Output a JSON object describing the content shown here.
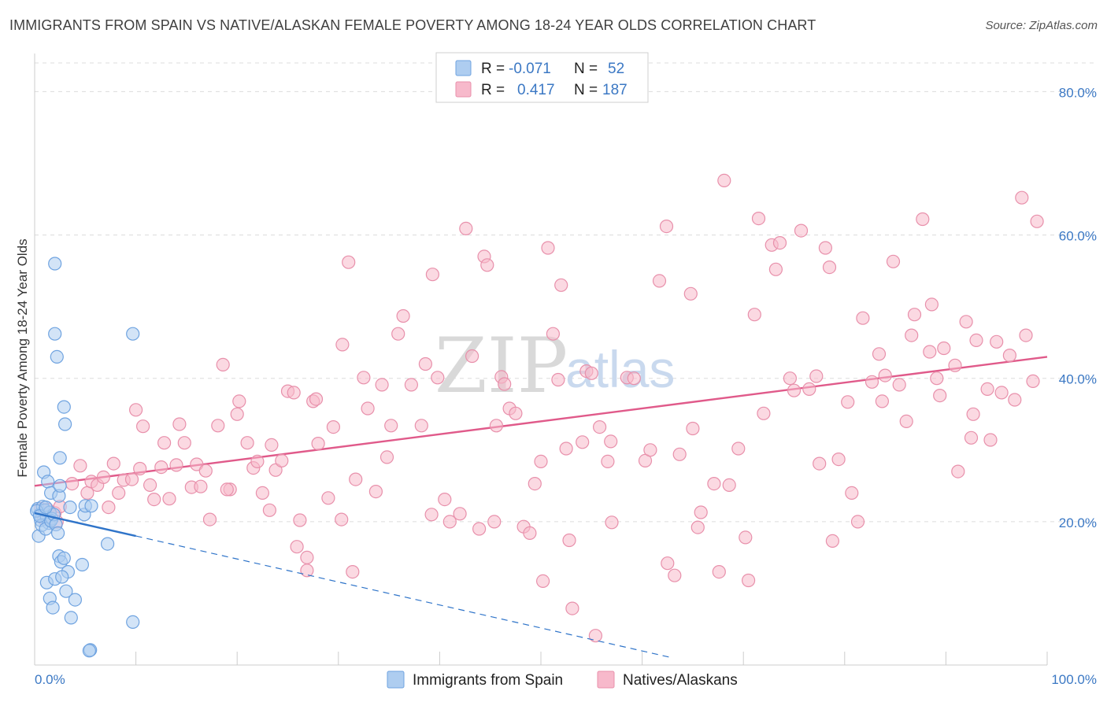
{
  "header": {
    "title": "IMMIGRANTS FROM SPAIN VS NATIVE/ALASKAN FEMALE POVERTY AMONG 18-24 YEAR OLDS CORRELATION CHART",
    "source": "Source: ZipAtlas.com"
  },
  "watermark": {
    "zip": "ZIP",
    "atlas": "atlas"
  },
  "legend": {
    "rows": [
      {
        "r_label": "R =",
        "r_value": "-0.071",
        "n_label": "N =",
        "n_value": "52",
        "color": "#aecdf0"
      },
      {
        "r_label": "R =",
        "r_value": "0.417",
        "n_label": "N =",
        "n_value": "187",
        "color": "#f7b9cb"
      }
    ]
  },
  "chart_data": {
    "type": "scatter",
    "ylabel": "Female Poverty Among 18-24 Year Olds",
    "xlabel": "",
    "xlim": [
      0,
      100
    ],
    "ylim": [
      0,
      84
    ],
    "x_tick_labels": {
      "left": "0.0%",
      "right": "100.0%"
    },
    "y_ticks": [
      {
        "value": 20,
        "label": "20.0%"
      },
      {
        "value": 40,
        "label": "40.0%"
      },
      {
        "value": 60,
        "label": "60.0%"
      },
      {
        "value": 80,
        "label": "80.0%"
      }
    ],
    "grid": "horizontal dashed",
    "series": [
      {
        "name": "Immigrants from Spain",
        "color": "#6fa3e0",
        "fill": "#aecdf0",
        "trend": {
          "solid": [
            [
              0,
              21.2
            ],
            [
              10,
              18.0
            ]
          ],
          "dashed": [
            [
              10,
              18.0
            ],
            [
              63,
              1.0
            ]
          ],
          "color": "#2f74c9"
        },
        "points": [
          [
            0.3,
            21.8
          ],
          [
            0.5,
            21.0
          ],
          [
            0.6,
            20.2
          ],
          [
            0.8,
            22.1
          ],
          [
            1.0,
            21.6
          ],
          [
            1.2,
            20.6
          ],
          [
            1.4,
            19.8
          ],
          [
            1.5,
            21.3
          ],
          [
            1.7,
            20.4
          ],
          [
            0.4,
            18.0
          ],
          [
            0.7,
            19.5
          ],
          [
            1.1,
            19.0
          ],
          [
            1.6,
            20.1
          ],
          [
            1.9,
            21.0
          ],
          [
            2.1,
            19.6
          ],
          [
            2.3,
            18.4
          ],
          [
            0.9,
            26.9
          ],
          [
            1.3,
            25.6
          ],
          [
            2.5,
            28.9
          ],
          [
            1.6,
            24.0
          ],
          [
            2.4,
            15.2
          ],
          [
            2.6,
            14.4
          ],
          [
            2.9,
            14.9
          ],
          [
            3.3,
            13.0
          ],
          [
            1.2,
            11.5
          ],
          [
            2.0,
            12.0
          ],
          [
            2.7,
            12.3
          ],
          [
            3.1,
            10.3
          ],
          [
            1.5,
            9.3
          ],
          [
            1.8,
            8.0
          ],
          [
            3.6,
            6.6
          ],
          [
            4.0,
            9.1
          ],
          [
            4.7,
            14.0
          ],
          [
            4.9,
            21.0
          ],
          [
            5.0,
            22.2
          ],
          [
            3.5,
            22.0
          ],
          [
            7.2,
            16.9
          ],
          [
            9.7,
            6.0
          ],
          [
            5.5,
            2.1
          ],
          [
            5.4,
            2.0
          ],
          [
            2.0,
            56.0
          ],
          [
            2.0,
            46.2
          ],
          [
            2.2,
            43.0
          ],
          [
            2.9,
            36.0
          ],
          [
            3.0,
            33.6
          ],
          [
            9.7,
            46.2
          ],
          [
            2.4,
            23.6
          ],
          [
            2.5,
            25.0
          ],
          [
            5.6,
            22.2
          ],
          [
            0.2,
            21.5
          ],
          [
            0.5,
            20.8
          ],
          [
            1.1,
            22.0
          ]
        ]
      },
      {
        "name": "Natives/Alaskans",
        "color": "#e890ab",
        "fill": "#f7b9cb",
        "trend": {
          "solid": [
            [
              0,
              25.0
            ],
            [
              100,
              43.0
            ]
          ],
          "color": "#e05a8a"
        },
        "points": [
          [
            0.6,
            21.8
          ],
          [
            0.9,
            20.4
          ],
          [
            1.3,
            21.7
          ],
          [
            1.6,
            20.6
          ],
          [
            2.0,
            21.2
          ],
          [
            2.2,
            20.0
          ],
          [
            2.5,
            22.1
          ],
          [
            3.7,
            25.3
          ],
          [
            4.5,
            27.8
          ],
          [
            5.2,
            24.0
          ],
          [
            5.6,
            25.6
          ],
          [
            6.2,
            25.1
          ],
          [
            6.8,
            26.2
          ],
          [
            7.3,
            22.0
          ],
          [
            7.8,
            28.1
          ],
          [
            8.3,
            24.0
          ],
          [
            8.8,
            25.8
          ],
          [
            9.6,
            25.9
          ],
          [
            10.0,
            35.6
          ],
          [
            10.4,
            27.4
          ],
          [
            10.7,
            33.3
          ],
          [
            11.4,
            25.1
          ],
          [
            11.8,
            23.1
          ],
          [
            12.5,
            27.6
          ],
          [
            12.8,
            31.0
          ],
          [
            13.3,
            23.2
          ],
          [
            14.0,
            27.9
          ],
          [
            14.3,
            33.6
          ],
          [
            14.8,
            31.0
          ],
          [
            15.5,
            24.8
          ],
          [
            16.0,
            28.0
          ],
          [
            16.4,
            24.9
          ],
          [
            16.9,
            27.1
          ],
          [
            17.3,
            20.3
          ],
          [
            18.1,
            33.4
          ],
          [
            18.6,
            41.9
          ],
          [
            19.3,
            24.5
          ],
          [
            20.0,
            35.0
          ],
          [
            20.2,
            36.8
          ],
          [
            21.0,
            31.0
          ],
          [
            21.6,
            27.5
          ],
          [
            22.0,
            28.4
          ],
          [
            22.5,
            24.0
          ],
          [
            23.2,
            21.6
          ],
          [
            23.4,
            30.7
          ],
          [
            23.8,
            27.2
          ],
          [
            24.4,
            28.5
          ],
          [
            25.0,
            38.2
          ],
          [
            25.6,
            38.0
          ],
          [
            25.9,
            16.5
          ],
          [
            26.2,
            20.2
          ],
          [
            26.9,
            15.0
          ],
          [
            27.5,
            36.8
          ],
          [
            27.8,
            37.1
          ],
          [
            28.0,
            30.9
          ],
          [
            29.0,
            23.3
          ],
          [
            29.5,
            33.2
          ],
          [
            30.3,
            20.3
          ],
          [
            30.4,
            44.7
          ],
          [
            31.0,
            56.2
          ],
          [
            31.4,
            13.0
          ],
          [
            31.7,
            25.9
          ],
          [
            32.5,
            40.1
          ],
          [
            32.9,
            35.8
          ],
          [
            33.7,
            24.2
          ],
          [
            34.3,
            39.1
          ],
          [
            34.8,
            29.0
          ],
          [
            35.2,
            33.4
          ],
          [
            35.9,
            46.2
          ],
          [
            36.4,
            48.7
          ],
          [
            37.2,
            39.1
          ],
          [
            38.2,
            33.4
          ],
          [
            38.6,
            42.0
          ],
          [
            39.2,
            21.0
          ],
          [
            39.3,
            54.5
          ],
          [
            39.8,
            40.1
          ],
          [
            40.5,
            23.1
          ],
          [
            41.0,
            20.0
          ],
          [
            42.0,
            21.1
          ],
          [
            42.6,
            60.9
          ],
          [
            43.2,
            43.1
          ],
          [
            43.9,
            19.0
          ],
          [
            44.4,
            57.0
          ],
          [
            44.7,
            55.8
          ],
          [
            45.4,
            20.0
          ],
          [
            45.6,
            33.4
          ],
          [
            46.1,
            40.2
          ],
          [
            46.4,
            39.2
          ],
          [
            46.9,
            35.8
          ],
          [
            47.5,
            35.1
          ],
          [
            48.3,
            19.3
          ],
          [
            48.9,
            18.4
          ],
          [
            49.4,
            25.3
          ],
          [
            50.0,
            28.4
          ],
          [
            50.2,
            11.7
          ],
          [
            50.7,
            58.2
          ],
          [
            51.2,
            46.2
          ],
          [
            51.7,
            39.8
          ],
          [
            52.0,
            53.0
          ],
          [
            52.5,
            30.2
          ],
          [
            52.8,
            17.4
          ],
          [
            53.1,
            7.9
          ],
          [
            54.1,
            31.1
          ],
          [
            54.5,
            41.0
          ],
          [
            55.0,
            40.7
          ],
          [
            55.4,
            4.1
          ],
          [
            55.8,
            33.2
          ],
          [
            56.6,
            28.4
          ],
          [
            56.9,
            31.2
          ],
          [
            57.0,
            19.9
          ],
          [
            58.5,
            40.1
          ],
          [
            59.2,
            40.0
          ],
          [
            60.3,
            28.5
          ],
          [
            60.8,
            30.0
          ],
          [
            61.7,
            53.6
          ],
          [
            62.4,
            61.2
          ],
          [
            62.5,
            14.2
          ],
          [
            63.2,
            12.5
          ],
          [
            63.7,
            29.4
          ],
          [
            64.8,
            51.8
          ],
          [
            65.0,
            33.0
          ],
          [
            65.5,
            19.2
          ],
          [
            65.8,
            21.3
          ],
          [
            67.1,
            25.3
          ],
          [
            67.6,
            13.0
          ],
          [
            68.1,
            67.6
          ],
          [
            68.6,
            25.1
          ],
          [
            69.5,
            30.2
          ],
          [
            70.2,
            17.8
          ],
          [
            70.5,
            11.8
          ],
          [
            71.1,
            48.9
          ],
          [
            71.5,
            62.3
          ],
          [
            72.0,
            35.1
          ],
          [
            72.8,
            58.6
          ],
          [
            73.2,
            55.2
          ],
          [
            73.6,
            58.9
          ],
          [
            74.6,
            40.0
          ],
          [
            75.0,
            38.3
          ],
          [
            75.7,
            60.6
          ],
          [
            76.5,
            38.5
          ],
          [
            77.2,
            40.3
          ],
          [
            77.5,
            28.1
          ],
          [
            78.1,
            58.2
          ],
          [
            78.5,
            55.5
          ],
          [
            78.8,
            17.3
          ],
          [
            79.4,
            28.7
          ],
          [
            80.3,
            36.7
          ],
          [
            80.7,
            24.0
          ],
          [
            81.3,
            20.0
          ],
          [
            81.8,
            48.4
          ],
          [
            82.7,
            39.5
          ],
          [
            83.4,
            43.4
          ],
          [
            83.7,
            36.8
          ],
          [
            84.0,
            40.4
          ],
          [
            84.8,
            56.3
          ],
          [
            85.4,
            39.1
          ],
          [
            86.1,
            34.0
          ],
          [
            86.6,
            46.0
          ],
          [
            86.9,
            48.9
          ],
          [
            87.7,
            62.2
          ],
          [
            88.4,
            43.7
          ],
          [
            88.6,
            50.3
          ],
          [
            89.1,
            40.0
          ],
          [
            89.4,
            37.6
          ],
          [
            89.8,
            44.2
          ],
          [
            90.9,
            41.8
          ],
          [
            91.2,
            27.0
          ],
          [
            92.0,
            47.9
          ],
          [
            92.5,
            31.7
          ],
          [
            92.7,
            35.0
          ],
          [
            93.0,
            45.3
          ],
          [
            94.1,
            38.5
          ],
          [
            94.4,
            31.4
          ],
          [
            95.0,
            45.1
          ],
          [
            95.5,
            38.0
          ],
          [
            96.3,
            43.2
          ],
          [
            96.8,
            37.0
          ],
          [
            97.5,
            65.2
          ],
          [
            97.9,
            46.0
          ],
          [
            98.6,
            39.6
          ],
          [
            99.0,
            61.9
          ],
          [
            19.0,
            24.5
          ],
          [
            26.9,
            13.2
          ]
        ]
      }
    ]
  },
  "bottom_legend": [
    {
      "label": "Immigrants from Spain",
      "color": "#aecdf0"
    },
    {
      "label": "Natives/Alaskans",
      "color": "#f7b9cb"
    }
  ]
}
